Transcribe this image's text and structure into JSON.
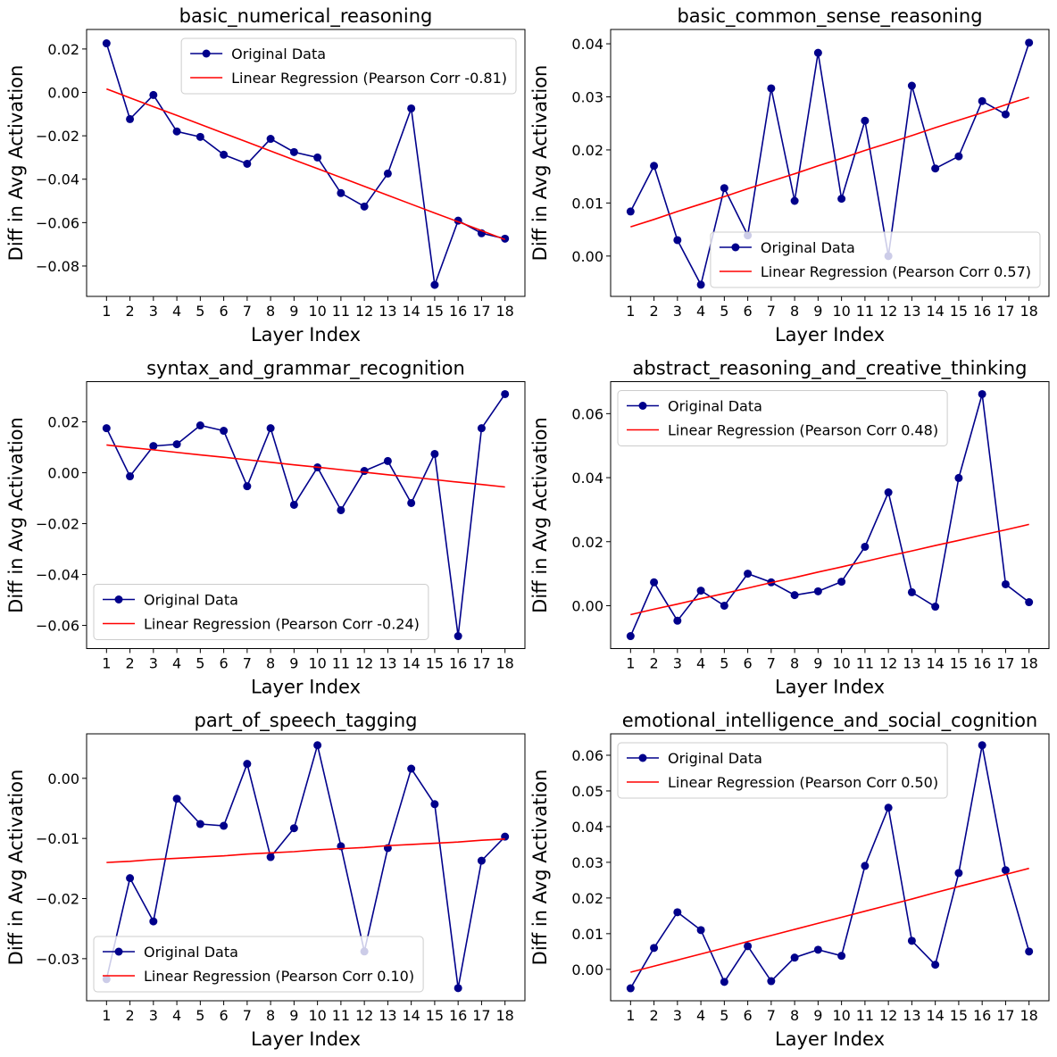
{
  "chart_data": [
    {
      "type": "line",
      "title": "basic_numerical_reasoning",
      "xlabel": "Layer Index",
      "ylabel": "Diff in Avg Activation",
      "x": [
        1,
        2,
        3,
        4,
        5,
        6,
        7,
        8,
        9,
        10,
        11,
        12,
        13,
        14,
        15,
        16,
        17,
        18
      ],
      "series": [
        {
          "name": "Original Data",
          "color": "#00008b",
          "marker": true,
          "values": [
            0.0226,
            -0.0123,
            -0.0012,
            -0.018,
            -0.0205,
            -0.0287,
            -0.0329,
            -0.0214,
            -0.0275,
            -0.03,
            -0.0464,
            -0.0526,
            -0.0374,
            -0.0074,
            -0.0887,
            -0.0591,
            -0.0649,
            -0.0674
          ]
        },
        {
          "name": "Linear Regression (Pearson Corr -0.81)",
          "color": "#ff0000",
          "marker": false,
          "values": [
            0.0016,
            -0.0025,
            -0.0066,
            -0.0106,
            -0.0147,
            -0.0188,
            -0.0229,
            -0.027,
            -0.0311,
            -0.0351,
            -0.0392,
            -0.0433,
            -0.0474,
            -0.0515,
            -0.0556,
            -0.0596,
            -0.0637,
            -0.0678
          ]
        }
      ],
      "xlim": [
        0.15,
        18.85
      ],
      "xticks": [
        1,
        2,
        3,
        4,
        5,
        6,
        7,
        8,
        9,
        10,
        11,
        12,
        13,
        14,
        15,
        16,
        17,
        18
      ],
      "ylim": [
        -0.094,
        0.029
      ],
      "yticks": [
        {
          "value": -0.08,
          "label": "−0.08"
        },
        {
          "value": -0.06,
          "label": "−0.06"
        },
        {
          "value": -0.04,
          "label": "−0.04"
        },
        {
          "value": -0.02,
          "label": "−0.02"
        },
        {
          "value": 0,
          "label": "0.00"
        },
        0.02
      ],
      "legend": "upper right"
    },
    {
      "type": "line",
      "title": "basic_common_sense_reasoning",
      "xlabel": "Layer Index",
      "ylabel": "Diff in Avg Activation",
      "x": [
        1,
        2,
        3,
        4,
        5,
        6,
        7,
        8,
        9,
        10,
        11,
        12,
        13,
        14,
        15,
        16,
        17,
        18
      ],
      "series": [
        {
          "name": "Original Data",
          "color": "#00008b",
          "marker": true,
          "values": [
            0.0084,
            0.017,
            0.003,
            -0.0054,
            0.0128,
            0.0039,
            0.0316,
            0.0104,
            0.0383,
            0.0108,
            0.0255,
            0.0,
            0.0321,
            0.0165,
            0.0188,
            0.0292,
            0.0267,
            0.0402
          ]
        },
        {
          "name": "Linear Regression (Pearson Corr 0.57)",
          "color": "#ff0000",
          "marker": false,
          "values": [
            0.0055,
            0.0069,
            0.0084,
            0.0098,
            0.0112,
            0.0127,
            0.0141,
            0.0155,
            0.017,
            0.0184,
            0.0199,
            0.0213,
            0.0227,
            0.0242,
            0.0256,
            0.027,
            0.0285,
            0.0299
          ]
        }
      ],
      "xlim": [
        0.15,
        18.85
      ],
      "xticks": [
        1,
        2,
        3,
        4,
        5,
        6,
        7,
        8,
        9,
        10,
        11,
        12,
        13,
        14,
        15,
        16,
        17,
        18
      ],
      "ylim": [
        -0.0076,
        0.0427
      ],
      "yticks": [
        {
          "value": 0,
          "label": "0.00"
        },
        0.01,
        0.02,
        0.03,
        0.04
      ],
      "legend": "lower right"
    },
    {
      "type": "line",
      "title": "syntax_and_grammar_recognition",
      "xlabel": "Layer Index",
      "ylabel": "Diff in Avg Activation",
      "x": [
        1,
        2,
        3,
        4,
        5,
        6,
        7,
        8,
        9,
        10,
        11,
        12,
        13,
        14,
        15,
        16,
        17,
        18
      ],
      "series": [
        {
          "name": "Original Data",
          "color": "#00008b",
          "marker": true,
          "values": [
            0.0175,
            -0.0014,
            0.0105,
            0.0112,
            0.0186,
            0.0165,
            -0.0053,
            0.0175,
            -0.0126,
            0.0021,
            -0.0147,
            0.0007,
            0.0046,
            -0.0119,
            0.0074,
            -0.0642,
            0.0175,
            0.0309
          ]
        },
        {
          "name": "Linear Regression (Pearson Corr -0.24)",
          "color": "#ff0000",
          "marker": false,
          "values": [
            0.0109,
            0.0099,
            0.009,
            0.008,
            0.007,
            0.0061,
            0.0051,
            0.0041,
            0.0031,
            0.0022,
            0.0012,
            0.0002,
            -0.0008,
            -0.0017,
            -0.0027,
            -0.0037,
            -0.0046,
            -0.0056
          ]
        }
      ],
      "xlim": [
        0.15,
        18.85
      ],
      "xticks": [
        1,
        2,
        3,
        4,
        5,
        6,
        7,
        8,
        9,
        10,
        11,
        12,
        13,
        14,
        15,
        16,
        17,
        18
      ],
      "ylim": [
        -0.0691,
        0.0358
      ],
      "yticks": [
        {
          "value": -0.06,
          "label": "−0.06"
        },
        {
          "value": -0.04,
          "label": "−0.04"
        },
        {
          "value": -0.02,
          "label": "−0.02"
        },
        {
          "value": 0,
          "label": "0.00"
        },
        0.02
      ],
      "legend": "lower left"
    },
    {
      "type": "line",
      "title": "abstract_reasoning_and_creative_thinking",
      "xlabel": "Layer Index",
      "ylabel": "Diff in Avg Activation",
      "x": [
        1,
        2,
        3,
        4,
        5,
        6,
        7,
        8,
        9,
        10,
        11,
        12,
        13,
        14,
        15,
        16,
        17,
        18
      ],
      "series": [
        {
          "name": "Original Data",
          "color": "#00008b",
          "marker": true,
          "values": [
            -0.0095,
            0.0073,
            -0.0047,
            0.0047,
            0.0,
            0.01,
            0.0073,
            0.0033,
            0.0045,
            0.0075,
            0.0184,
            0.0354,
            0.0042,
            -0.0003,
            0.0399,
            0.0661,
            0.0067,
            0.0011
          ]
        },
        {
          "name": "Linear Regression (Pearson Corr 0.48)",
          "color": "#ff0000",
          "marker": false,
          "values": [
            -0.0028,
            -0.0011,
            0.0005,
            0.0022,
            0.0038,
            0.0055,
            0.0072,
            0.0088,
            0.0105,
            0.0121,
            0.0138,
            0.0155,
            0.0171,
            0.0188,
            0.0204,
            0.0221,
            0.0237,
            0.0254
          ]
        }
      ],
      "xlim": [
        0.15,
        18.85
      ],
      "xticks": [
        1,
        2,
        3,
        4,
        5,
        6,
        7,
        8,
        9,
        10,
        11,
        12,
        13,
        14,
        15,
        16,
        17,
        18
      ],
      "ylim": [
        -0.0134,
        0.07
      ],
      "yticks": [
        {
          "value": 0,
          "label": "0.00"
        },
        0.02,
        0.04,
        0.06
      ],
      "legend": "upper left"
    },
    {
      "type": "line",
      "title": "part_of_speech_tagging",
      "xlabel": "Layer Index",
      "ylabel": "Diff in Avg Activation",
      "x": [
        1,
        2,
        3,
        4,
        5,
        6,
        7,
        8,
        9,
        10,
        11,
        12,
        13,
        14,
        15,
        16,
        17,
        18
      ],
      "series": [
        {
          "name": "Original Data",
          "color": "#00008b",
          "marker": true,
          "values": [
            -0.0334,
            -0.0166,
            -0.0238,
            -0.0034,
            -0.0076,
            -0.0079,
            0.0024,
            -0.0131,
            -0.0083,
            0.0055,
            -0.0113,
            -0.0288,
            -0.0116,
            0.0016,
            -0.0043,
            -0.0349,
            -0.0137,
            -0.0097
          ]
        },
        {
          "name": "Linear Regression (Pearson Corr 0.10)",
          "color": "#ff0000",
          "marker": false,
          "values": [
            -0.014,
            -0.0138,
            -0.0135,
            -0.0133,
            -0.0131,
            -0.0129,
            -0.0126,
            -0.0124,
            -0.0122,
            -0.0119,
            -0.0117,
            -0.0115,
            -0.0112,
            -0.011,
            -0.0108,
            -0.0106,
            -0.0103,
            -0.0101
          ]
        }
      ],
      "xlim": [
        0.15,
        18.85
      ],
      "xticks": [
        1,
        2,
        3,
        4,
        5,
        6,
        7,
        8,
        9,
        10,
        11,
        12,
        13,
        14,
        15,
        16,
        17,
        18
      ],
      "ylim": [
        -0.037,
        0.0074
      ],
      "yticks": [
        {
          "value": -0.03,
          "label": "−0.03"
        },
        {
          "value": -0.02,
          "label": "−0.02"
        },
        {
          "value": -0.01,
          "label": "−0.01"
        },
        {
          "value": 0,
          "label": "0.00"
        }
      ],
      "legend": "lower left"
    },
    {
      "type": "line",
      "title": "emotional_intelligence_and_social_cognition",
      "xlabel": "Layer Index",
      "ylabel": "Diff in Avg Activation",
      "x": [
        1,
        2,
        3,
        4,
        5,
        6,
        7,
        8,
        9,
        10,
        11,
        12,
        13,
        14,
        15,
        16,
        17,
        18
      ],
      "series": [
        {
          "name": "Original Data",
          "color": "#00008b",
          "marker": true,
          "values": [
            -0.0053,
            0.006,
            0.016,
            0.011,
            -0.0035,
            0.0065,
            -0.0033,
            0.0033,
            0.0055,
            0.0038,
            0.029,
            0.0453,
            0.008,
            0.0013,
            0.027,
            0.0628,
            0.0278,
            0.005
          ]
        },
        {
          "name": "Linear Regression (Pearson Corr 0.50)",
          "color": "#ff0000",
          "marker": false,
          "values": [
            -0.0008,
            0.0009,
            0.0026,
            0.0043,
            0.006,
            0.0078,
            0.0095,
            0.0112,
            0.0129,
            0.0146,
            0.0163,
            0.018,
            0.0197,
            0.0215,
            0.0232,
            0.0249,
            0.0266,
            0.0283
          ]
        }
      ],
      "xlim": [
        0.15,
        18.85
      ],
      "xticks": [
        1,
        2,
        3,
        4,
        5,
        6,
        7,
        8,
        9,
        10,
        11,
        12,
        13,
        14,
        15,
        16,
        17,
        18
      ],
      "ylim": [
        -0.0088,
        0.066
      ],
      "yticks": [
        {
          "value": 0,
          "label": "0.00"
        },
        0.01,
        0.02,
        0.03,
        0.04,
        0.05,
        0.06
      ],
      "legend": "upper left"
    }
  ]
}
